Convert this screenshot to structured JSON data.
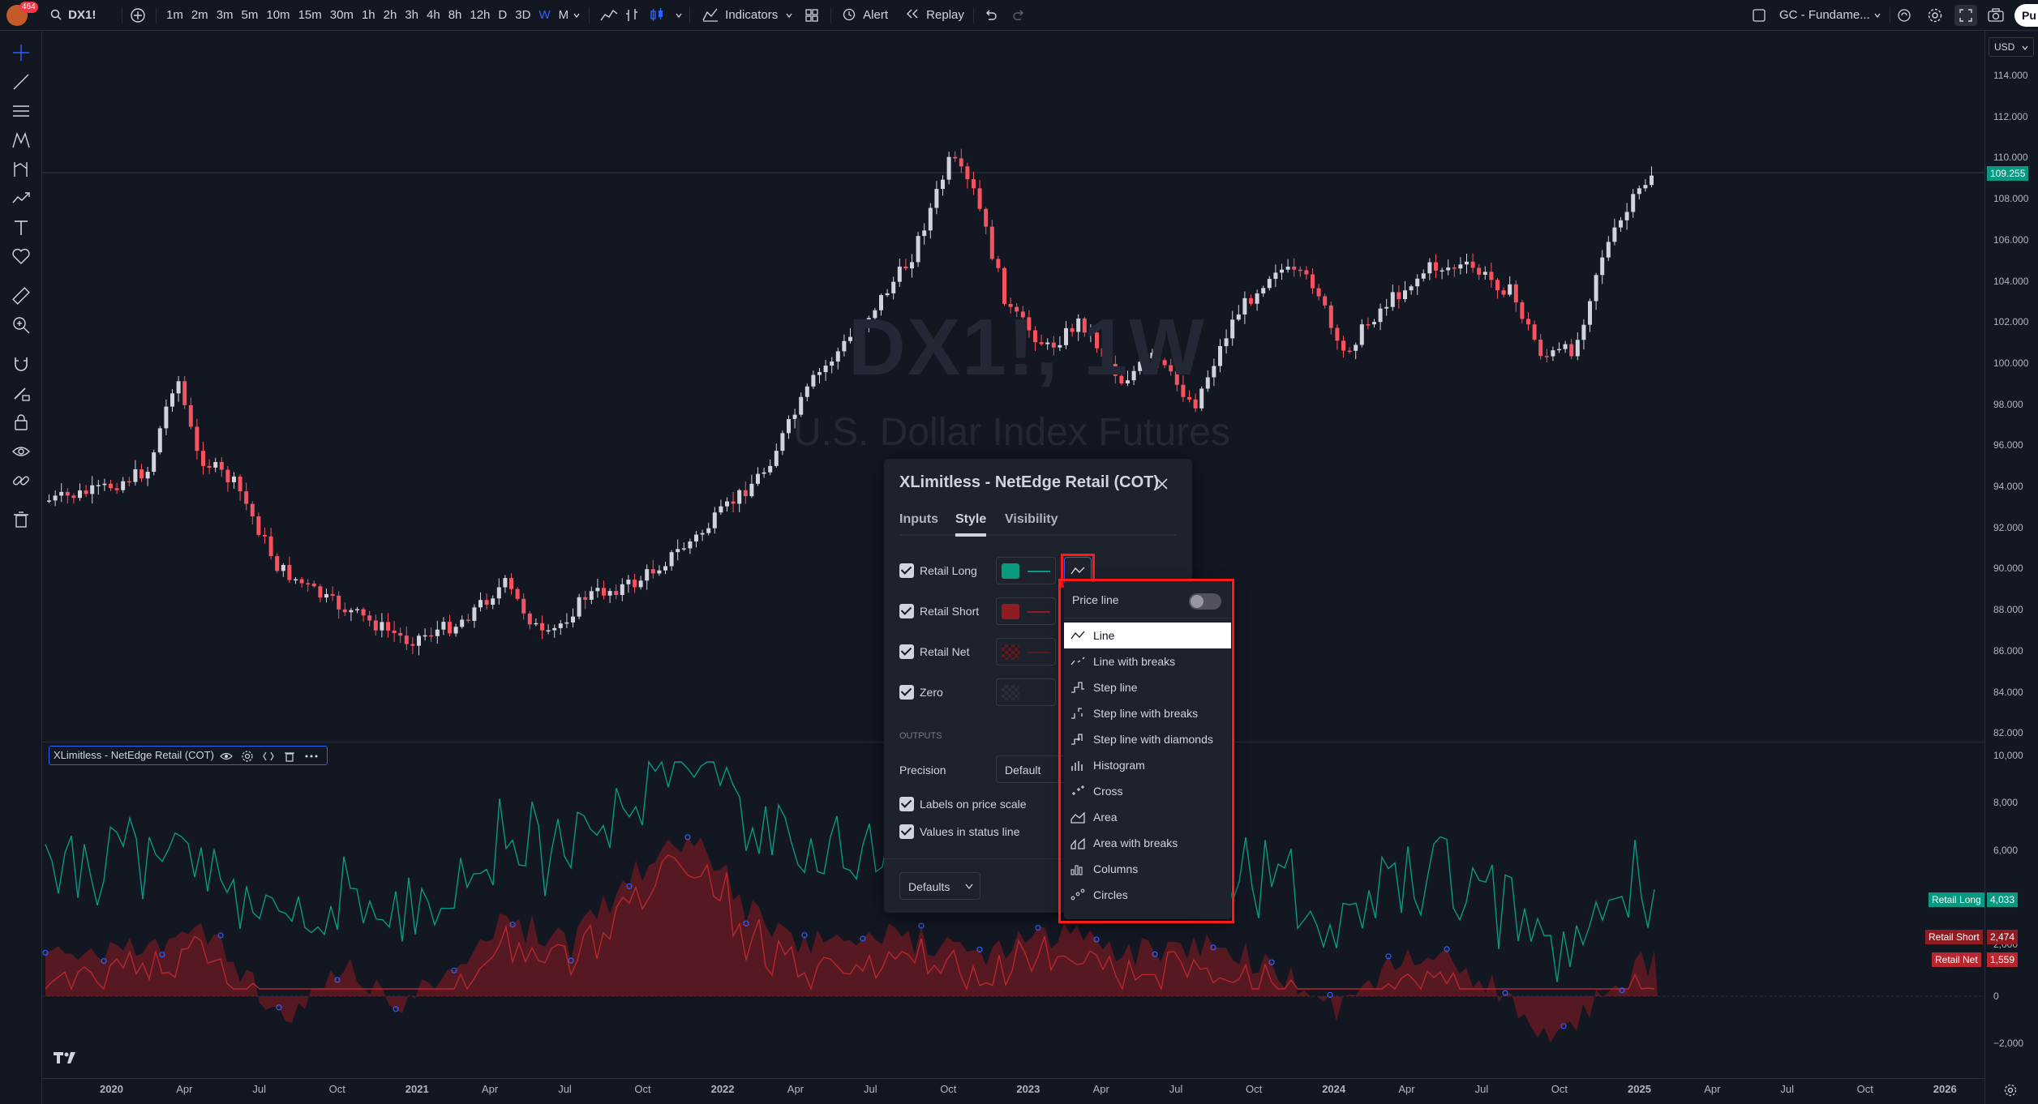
{
  "topbar": {
    "symbol": "DX1!",
    "notif_badge": "464",
    "timeframes": [
      "1m",
      "2m",
      "3m",
      "5m",
      "10m",
      "15m",
      "30m",
      "1h",
      "2h",
      "3h",
      "4h",
      "8h",
      "12h",
      "D",
      "3D",
      "W",
      "M"
    ],
    "active_timeframe": "W",
    "indicators_label": "Indicators",
    "alert_label": "Alert",
    "replay_label": "Replay",
    "layout_name": "GC - Fundame...",
    "publish_label": "Pu"
  },
  "chart": {
    "watermark_symbol": "DX1!, 1W",
    "watermark_name": "U.S. Dollar Index Futures",
    "currency": "USD",
    "last_price": "109.255",
    "price_ticks": [
      "114.000",
      "112.000",
      "110.000",
      "108.000",
      "106.000",
      "104.000",
      "102.000",
      "100.000",
      "98.000",
      "96.000",
      "94.000",
      "92.000",
      "90.000",
      "88.000",
      "86.000",
      "84.000",
      "82.000"
    ],
    "indicator_ticks": [
      "10,000",
      "8,000",
      "6,000",
      "4,000",
      "2,000",
      "0",
      "−2,000"
    ],
    "time_ticks": [
      "2020",
      "Apr",
      "Jul",
      "Oct",
      "2021",
      "Apr",
      "Jul",
      "Oct",
      "2022",
      "Apr",
      "Jul",
      "Oct",
      "2023",
      "Apr",
      "Jul",
      "Oct",
      "2024",
      "Apr",
      "Jul",
      "Oct",
      "2025",
      "Apr",
      "Jul",
      "Oct",
      "2026"
    ]
  },
  "indicator": {
    "legend_name": "XLimitless - NetEdge Retail (COT)",
    "retail_long_label": "Retail Long",
    "retail_long_value": "4,033",
    "retail_short_label": "Retail Short",
    "retail_short_value": "2,474",
    "retail_net_label": "Retail Net",
    "retail_net_value": "1,559"
  },
  "colors": {
    "retail_long": "#089981",
    "retail_short": "#8e1c22",
    "retail_net": "#b8262f",
    "accent": "#2962ff",
    "highlight_box": "#ff1a1a"
  },
  "dialog": {
    "title": "XLimitless - NetEdge Retail (COT)",
    "tabs": [
      "Inputs",
      "Style",
      "Visibility"
    ],
    "active_tab": "Style",
    "rows": [
      {
        "label": "Retail Long"
      },
      {
        "label": "Retail Short"
      },
      {
        "label": "Retail Net"
      },
      {
        "label": "Zero"
      }
    ],
    "outputs_heading": "OUTPUTS",
    "precision_label": "Precision",
    "precision_value": "Default",
    "labels_on_price_scale": "Labels on price scale",
    "values_in_status_line": "Values in status line",
    "defaults_button": "Defaults"
  },
  "style_menu": {
    "price_line_label": "Price line",
    "price_line_on": false,
    "items": [
      "Line",
      "Line with breaks",
      "Step line",
      "Step line with breaks",
      "Step line with diamonds",
      "Histogram",
      "Cross",
      "Area",
      "Area with breaks",
      "Columns",
      "Circles"
    ],
    "selected": "Line"
  }
}
